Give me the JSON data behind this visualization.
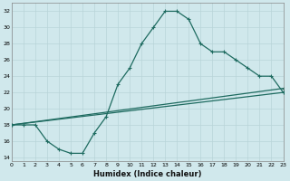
{
  "xlabel": "Humidex (Indice chaleur)",
  "bg_color": "#d0e8ec",
  "grid_color": "#b8d4d8",
  "line_color": "#1e6b60",
  "xlim": [
    0,
    23
  ],
  "ylim": [
    13.5,
    33
  ],
  "xticks": [
    0,
    1,
    2,
    3,
    4,
    5,
    6,
    7,
    8,
    9,
    10,
    11,
    12,
    13,
    14,
    15,
    16,
    17,
    18,
    19,
    20,
    21,
    22,
    23
  ],
  "yticks": [
    14,
    16,
    18,
    20,
    22,
    24,
    26,
    28,
    30,
    32
  ],
  "series1_x": [
    0,
    1,
    2,
    3,
    4,
    5,
    6,
    7,
    8,
    9,
    10,
    11,
    12,
    13,
    14,
    15,
    16,
    17,
    18,
    19,
    20,
    21,
    22,
    23
  ],
  "series1_y": [
    18,
    18,
    18,
    16,
    15,
    14.5,
    14.5,
    17,
    19,
    23,
    25,
    28,
    30,
    32,
    32,
    31,
    28,
    27,
    27,
    26,
    25,
    24,
    24,
    22
  ],
  "series2_x": [
    0,
    23
  ],
  "series2_y": [
    18,
    22
  ],
  "series3_x": [
    0,
    23
  ],
  "series3_y": [
    18,
    22.5
  ],
  "marker": "+",
  "markersize": 3.5,
  "linewidth": 0.9,
  "xlabel_fontsize": 6,
  "tick_fontsize": 4.5
}
